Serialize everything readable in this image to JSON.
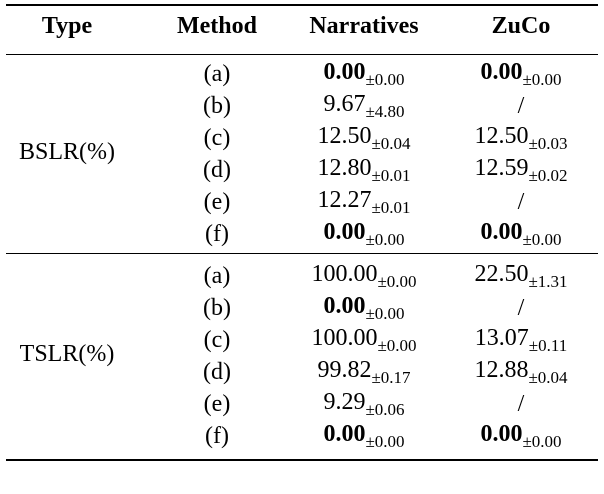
{
  "table": {
    "header": [
      "Type",
      "Method",
      "Narratives",
      "ZuCo"
    ],
    "groups": [
      {
        "type": "BSLR(%)",
        "rows": [
          {
            "method": "(a)",
            "narratives": {
              "value": "0.00",
              "std": "±0.00",
              "bold": true
            },
            "zuco": {
              "value": "0.00",
              "std": "±0.00",
              "bold": true
            }
          },
          {
            "method": "(b)",
            "narratives": {
              "value": "9.67",
              "std": "±4.80",
              "bold": false
            },
            "zuco": {
              "value": "/",
              "bold": false
            }
          },
          {
            "method": "(c)",
            "narratives": {
              "value": "12.50",
              "std": "±0.04",
              "bold": false
            },
            "zuco": {
              "value": "12.50",
              "std": "±0.03",
              "bold": false
            }
          },
          {
            "method": "(d)",
            "narratives": {
              "value": "12.80",
              "std": "±0.01",
              "bold": false
            },
            "zuco": {
              "value": "12.59",
              "std": "±0.02",
              "bold": false
            }
          },
          {
            "method": "(e)",
            "narratives": {
              "value": "12.27",
              "std": "±0.01",
              "bold": false
            },
            "zuco": {
              "value": "/",
              "bold": false
            }
          },
          {
            "method": "(f)",
            "narratives": {
              "value": "0.00",
              "std": "±0.00",
              "bold": true
            },
            "zuco": {
              "value": "0.00",
              "std": "±0.00",
              "bold": true
            }
          }
        ]
      },
      {
        "type": "TSLR(%)",
        "rows": [
          {
            "method": "(a)",
            "narratives": {
              "value": "100.00",
              "std": "±0.00",
              "bold": false
            },
            "zuco": {
              "value": "22.50",
              "std": "±1.31",
              "bold": false
            }
          },
          {
            "method": "(b)",
            "narratives": {
              "value": "0.00",
              "std": "±0.00",
              "bold": true
            },
            "zuco": {
              "value": "/",
              "bold": false
            }
          },
          {
            "method": "(c)",
            "narratives": {
              "value": "100.00",
              "std": "±0.00",
              "bold": false
            },
            "zuco": {
              "value": "13.07",
              "std": "±0.11",
              "bold": false
            }
          },
          {
            "method": "(d)",
            "narratives": {
              "value": "99.82",
              "std": "±0.17",
              "bold": false
            },
            "zuco": {
              "value": "12.88",
              "std": "±0.04",
              "bold": false
            }
          },
          {
            "method": "(e)",
            "narratives": {
              "value": "9.29",
              "std": "±0.06",
              "bold": false
            },
            "zuco": {
              "value": "/",
              "bold": false
            }
          },
          {
            "method": "(f)",
            "narratives": {
              "value": "0.00",
              "std": "±0.00",
              "bold": true
            },
            "zuco": {
              "value": "0.00",
              "std": "±0.00",
              "bold": true
            }
          }
        ]
      }
    ]
  }
}
